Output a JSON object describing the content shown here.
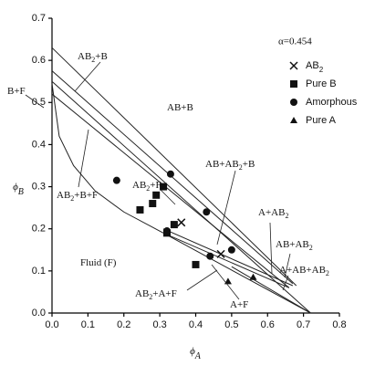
{
  "chart_data": {
    "type": "scatter",
    "title": "α=0.454",
    "x_label": "ϕA",
    "y_label": "ϕB",
    "xlim": [
      0,
      0.8
    ],
    "ylim": [
      0,
      0.7
    ],
    "xticks": [
      {
        "value": 0,
        "label": "0.0"
      },
      0.1,
      0.2,
      0.3,
      0.4,
      0.5,
      0.6,
      0.7,
      0.8
    ],
    "yticks": [
      {
        "value": 0,
        "label": "0.0"
      },
      0.1,
      0.2,
      0.3,
      0.4,
      0.5,
      0.6,
      0.7
    ],
    "series": [
      {
        "name": "AB2",
        "marker": "x",
        "color": "#111",
        "x": [
          0.36,
          0.47
        ],
        "y": [
          0.215,
          0.14
        ]
      },
      {
        "name": "Pure B",
        "marker": "square",
        "color": "#111",
        "x": [
          0.245,
          0.28,
          0.29,
          0.31,
          0.34,
          0.32,
          0.4
        ],
        "y": [
          0.245,
          0.26,
          0.28,
          0.3,
          0.21,
          0.19,
          0.115
        ]
      },
      {
        "name": "Amorphous",
        "marker": "circle",
        "color": "#111",
        "x": [
          0.18,
          0.33,
          0.43,
          0.44,
          0.5,
          0.32
        ],
        "y": [
          0.315,
          0.33,
          0.24,
          0.135,
          0.15,
          0.195
        ]
      },
      {
        "name": "Pure A",
        "marker": "triangle",
        "color": "#111",
        "x": [
          0.49,
          0.56
        ],
        "y": [
          0.075,
          0.085
        ]
      }
    ],
    "lines": [
      {
        "x": [
          0,
          0.68
        ],
        "y": [
          0.63,
          0.065
        ]
      },
      {
        "x": [
          0,
          0.72
        ],
        "y": [
          0.55,
          0.0
        ]
      },
      {
        "x": [
          0,
          0.66
        ],
        "y": [
          0.52,
          0.06
        ]
      },
      {
        "x": [
          0,
          0.67
        ],
        "y": [
          0.575,
          0.07
        ]
      },
      {
        "x": [
          0,
          0.02,
          0.06,
          0.12,
          0.2,
          0.31
        ],
        "y": [
          0.545,
          0.42,
          0.35,
          0.29,
          0.24,
          0.19
        ]
      },
      {
        "x": [
          0.31,
          0.72
        ],
        "y": [
          0.19,
          0.0
        ]
      },
      {
        "x": [
          0.31,
          0.66
        ],
        "y": [
          0.19,
          0.06
        ]
      },
      {
        "x": [
          0.31,
          0.67
        ],
        "y": [
          0.2,
          0.065
        ]
      },
      {
        "x": [
          0.5,
          0.72
        ],
        "y": [
          0.11,
          0.0
        ]
      }
    ],
    "annotations": [
      "AB2+B",
      "B+F",
      "AB+B",
      "AB2+B+F",
      "AB2+F",
      "Fluid (F)",
      "AB+AB2+B",
      "A+AB2",
      "AB+AB2",
      "A+AB+AB2",
      "AB2+A+F",
      "A+F"
    ]
  }
}
